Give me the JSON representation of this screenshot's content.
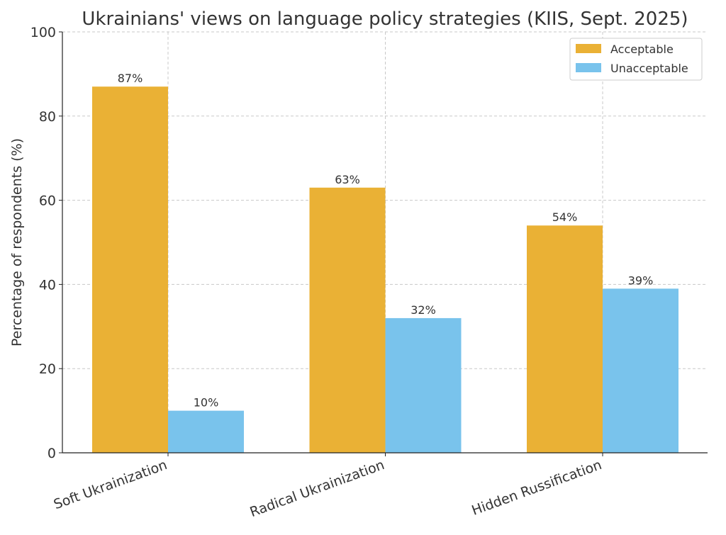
{
  "chart_data": {
    "type": "bar",
    "title": "Ukrainians' views on language policy strategies (KIIS, Sept. 2025)",
    "xlabel": "",
    "ylabel": "Percentage of respondents (%)",
    "ylim": [
      0,
      100
    ],
    "yticks": [
      0,
      20,
      40,
      60,
      80,
      100
    ],
    "grid": true,
    "legend_position": "top-right",
    "categories": [
      "Soft Ukrainization",
      "Radical Ukrainization",
      "Hidden Russification"
    ],
    "series": [
      {
        "name": "Acceptable",
        "values": [
          87,
          63,
          54
        ],
        "color": "#EAB135"
      },
      {
        "name": "Unacceptable",
        "values": [
          10,
          32,
          39
        ],
        "color": "#79C3EC"
      }
    ],
    "value_suffix": "%"
  }
}
